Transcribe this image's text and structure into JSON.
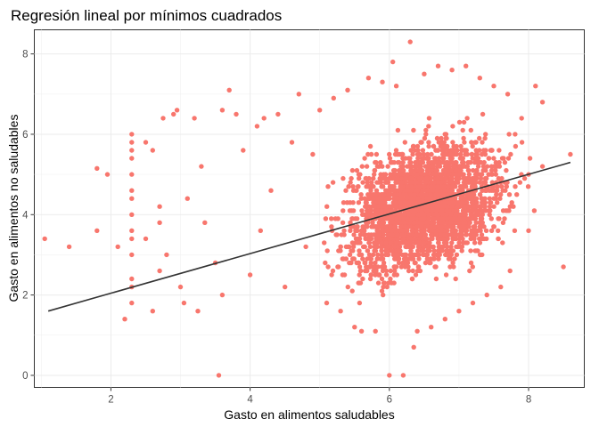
{
  "chart_data": {
    "type": "scatter",
    "title": "Regresión lineal por mínimos cuadrados",
    "xlabel": "Gasto en alimentos saludables",
    "ylabel": "Gasto en alimentos no saludables",
    "xlim": [
      0.9,
      8.8
    ],
    "ylim": [
      -0.3,
      8.6
    ],
    "x_ticks": [
      2,
      4,
      6,
      8
    ],
    "y_ticks": [
      0,
      2,
      4,
      6,
      8
    ],
    "grid": true,
    "legend": "none",
    "point_color": "#F8766D",
    "line_color": "#333333",
    "regression_line": {
      "x": [
        1.1,
        8.6
      ],
      "y": [
        1.6,
        5.3
      ]
    },
    "points": [
      [
        1.05,
        3.4
      ],
      [
        1.4,
        3.2
      ],
      [
        1.8,
        3.6
      ],
      [
        1.8,
        5.15
      ],
      [
        1.95,
        5.0
      ],
      [
        2.1,
        3.2
      ],
      [
        2.2,
        1.4
      ],
      [
        2.3,
        6.0
      ],
      [
        2.3,
        5.8
      ],
      [
        2.3,
        5.6
      ],
      [
        2.3,
        5.4
      ],
      [
        2.3,
        5.0
      ],
      [
        2.3,
        4.6
      ],
      [
        2.3,
        4.4
      ],
      [
        2.3,
        4.0
      ],
      [
        2.3,
        3.6
      ],
      [
        2.3,
        3.4
      ],
      [
        2.3,
        3.0
      ],
      [
        2.3,
        2.4
      ],
      [
        2.3,
        2.2
      ],
      [
        2.3,
        1.8
      ],
      [
        2.5,
        5.8
      ],
      [
        2.5,
        3.4
      ],
      [
        2.6,
        5.6
      ],
      [
        2.6,
        1.6
      ],
      [
        2.7,
        4.2
      ],
      [
        2.7,
        3.8
      ],
      [
        2.7,
        2.6
      ],
      [
        2.75,
        6.4
      ],
      [
        2.8,
        3.0
      ],
      [
        2.9,
        6.5
      ],
      [
        2.95,
        6.6
      ],
      [
        3.0,
        2.2
      ],
      [
        3.05,
        1.8
      ],
      [
        3.1,
        4.4
      ],
      [
        3.2,
        6.4
      ],
      [
        3.25,
        1.6
      ],
      [
        3.3,
        5.2
      ],
      [
        3.35,
        3.8
      ],
      [
        3.5,
        2.8
      ],
      [
        3.55,
        0.0
      ],
      [
        3.6,
        6.6
      ],
      [
        3.6,
        2.0
      ],
      [
        3.7,
        7.1
      ],
      [
        3.8,
        6.5
      ],
      [
        3.9,
        5.6
      ],
      [
        4.0,
        2.5
      ],
      [
        4.1,
        6.2
      ],
      [
        4.15,
        3.6
      ],
      [
        4.2,
        6.4
      ],
      [
        4.3,
        4.6
      ],
      [
        4.4,
        6.5
      ],
      [
        4.5,
        2.2
      ],
      [
        4.6,
        5.8
      ],
      [
        4.7,
        7.0
      ],
      [
        4.8,
        3.2
      ],
      [
        4.9,
        5.5
      ],
      [
        5.0,
        6.6
      ],
      [
        5.1,
        1.8
      ],
      [
        5.2,
        6.9
      ],
      [
        5.3,
        1.6
      ],
      [
        5.4,
        7.1
      ],
      [
        5.5,
        1.2
      ],
      [
        5.6,
        1.1
      ],
      [
        5.7,
        7.4
      ],
      [
        5.8,
        1.1
      ],
      [
        5.9,
        7.3
      ],
      [
        6.0,
        0.0
      ],
      [
        6.05,
        7.8
      ],
      [
        6.1,
        7.2
      ],
      [
        6.2,
        0.0
      ],
      [
        6.3,
        8.3
      ],
      [
        6.35,
        0.7
      ],
      [
        6.4,
        1.1
      ],
      [
        6.5,
        7.5
      ],
      [
        6.6,
        1.2
      ],
      [
        6.7,
        7.7
      ],
      [
        6.8,
        1.4
      ],
      [
        6.9,
        7.6
      ],
      [
        7.0,
        1.6
      ],
      [
        7.1,
        7.7
      ],
      [
        7.2,
        1.8
      ],
      [
        7.3,
        7.4
      ],
      [
        7.4,
        2.0
      ],
      [
        7.5,
        7.2
      ],
      [
        7.6,
        2.2
      ],
      [
        7.7,
        7.0
      ],
      [
        7.8,
        3.6
      ],
      [
        7.9,
        6.4
      ],
      [
        8.0,
        3.6
      ],
      [
        8.1,
        7.2
      ],
      [
        8.2,
        6.8
      ],
      [
        8.5,
        2.7
      ],
      [
        8.6,
        5.5
      ],
      [
        8.2,
        5.2
      ],
      [
        8.0,
        5.0
      ]
    ],
    "cloud": {
      "cx": 6.5,
      "cy": 4.2,
      "sx": 0.75,
      "sy": 1.05
    }
  }
}
